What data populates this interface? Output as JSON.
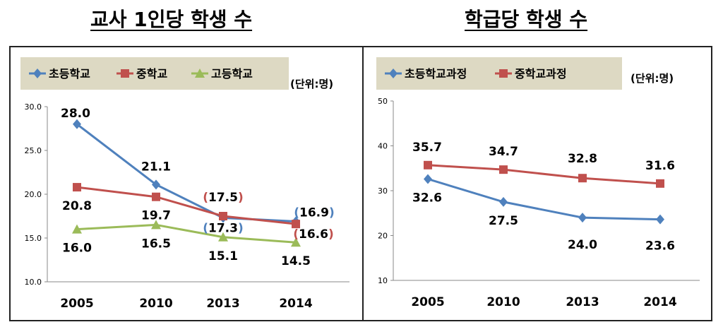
{
  "titles": {
    "left": "교사 1인당 학생 수",
    "right": "학급당 학생 수"
  },
  "chart_data": [
    {
      "type": "line",
      "title": "교사 1인당 학생 수",
      "unit": "(단위:명)",
      "categories": [
        "2005",
        "2010",
        "2013",
        "2014"
      ],
      "ylim": [
        10.0,
        30.0
      ],
      "yticks": [
        "10.0",
        "15.0",
        "20.0",
        "25.0",
        "30.0"
      ],
      "legend_position": "top",
      "grid": false,
      "series": [
        {
          "name": "초등학교",
          "color": "#4F81BD",
          "marker": "diamond",
          "values": [
            28.0,
            21.1,
            17.3,
            16.9
          ],
          "labels": [
            "28.0",
            "21.1",
            "(17.3)",
            "(16.9)"
          ]
        },
        {
          "name": "중학교",
          "color": "#C0504D",
          "marker": "square",
          "values": [
            20.8,
            19.7,
            17.5,
            16.6
          ],
          "labels": [
            "20.8",
            "19.7",
            "(17.5)",
            "(16.6)"
          ]
        },
        {
          "name": "고등학교",
          "color": "#9BBB59",
          "marker": "triangle",
          "values": [
            16.0,
            16.5,
            15.1,
            14.5
          ],
          "labels": [
            "16.0",
            "16.5",
            "15.1",
            "14.5"
          ]
        }
      ]
    },
    {
      "type": "line",
      "title": "학급당 학생 수",
      "unit": "(단위:명)",
      "categories": [
        "2005",
        "2010",
        "2013",
        "2014"
      ],
      "ylim": [
        10,
        50
      ],
      "yticks": [
        "10",
        "20",
        "30",
        "40",
        "50"
      ],
      "legend_position": "top",
      "grid": false,
      "series": [
        {
          "name": "초등학교과정",
          "color": "#4F81BD",
          "marker": "diamond",
          "values": [
            32.6,
            27.5,
            24.0,
            23.6
          ],
          "labels": [
            "32.6",
            "27.5",
            "24.0",
            "23.6"
          ]
        },
        {
          "name": "중학교과정",
          "color": "#C0504D",
          "marker": "square",
          "values": [
            35.7,
            34.7,
            32.8,
            31.6
          ],
          "labels": [
            "35.7",
            "34.7",
            "32.8",
            "31.6"
          ]
        }
      ]
    }
  ]
}
